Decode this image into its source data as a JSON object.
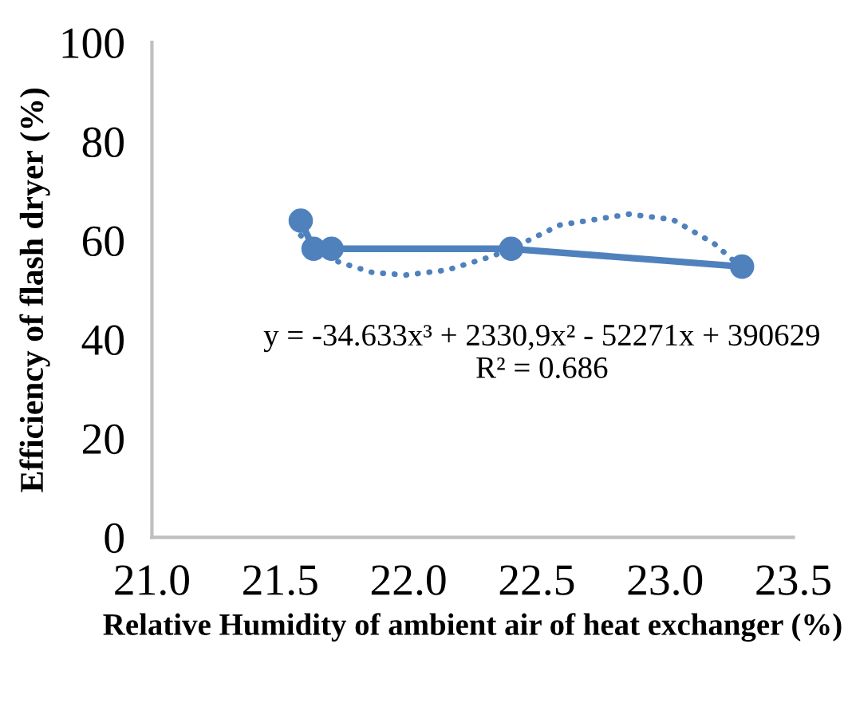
{
  "chart_data": {
    "type": "line",
    "xlabel": "Relative Humidity of ambient air of heat exchanger (%)",
    "ylabel": "Efficiency of flash dryer (%)",
    "xlim": [
      21.0,
      23.5
    ],
    "xticks": [
      {
        "value": 21.0,
        "label": "21.0"
      },
      {
        "value": 21.5,
        "label": "21.5"
      },
      {
        "value": 22.0,
        "label": "22.0"
      },
      {
        "value": 22.5,
        "label": "22.5"
      },
      {
        "value": 23.0,
        "label": "23.0"
      },
      {
        "value": 23.5,
        "label": "23.5"
      }
    ],
    "ylim": [
      0,
      100
    ],
    "yticks": [
      0,
      20,
      40,
      60,
      80,
      100
    ],
    "grid": false,
    "legend": false,
    "series": [
      {
        "color": "#4f81bd",
        "marker": "circle",
        "line_style": "solid",
        "x": [
          21.58,
          21.63,
          21.7,
          22.4,
          23.3
        ],
        "values": [
          64,
          58.3,
          58.3,
          58.3,
          54.7
        ]
      },
      {
        "type": "line",
        "color": "#4f81bd",
        "marker": "none",
        "line_style": "dotted",
        "x": [
          21.58,
          21.63,
          21.73,
          21.86,
          21.99,
          22.15,
          22.32,
          22.4,
          22.59,
          22.86,
          23.03,
          23.19,
          23.26,
          23.3
        ],
        "values": [
          61,
          58,
          55.6,
          53.5,
          53,
          54,
          56.7,
          58.3,
          63.1,
          65.3,
          64.2,
          59.4,
          56.2,
          55
        ]
      }
    ],
    "annotations": [
      "y = -34.633x³ + 2330,9x² - 52271x + 390629\nR² = 0.686"
    ]
  }
}
